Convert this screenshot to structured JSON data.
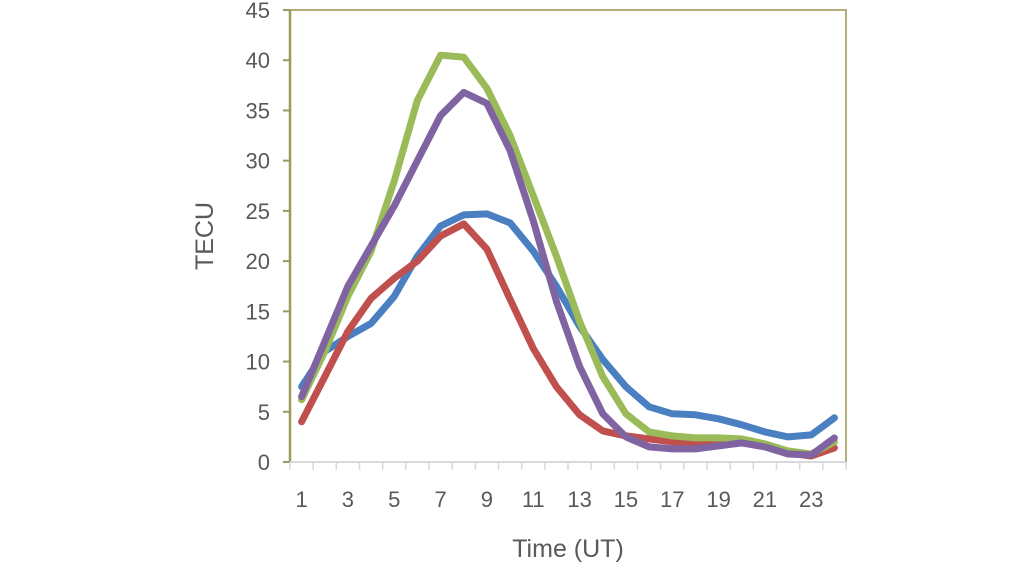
{
  "chart_data": {
    "type": "line",
    "title": "",
    "xlabel": "Time (UT)",
    "ylabel": "TECU",
    "ylim": [
      0,
      45
    ],
    "yticks": [
      0,
      5,
      10,
      15,
      20,
      25,
      30,
      35,
      40,
      45
    ],
    "x": [
      1,
      2,
      3,
      4,
      5,
      6,
      7,
      8,
      9,
      10,
      11,
      12,
      13,
      14,
      15,
      16,
      17,
      18,
      19,
      20,
      21,
      22,
      23,
      24
    ],
    "xtick_labels": [
      "1",
      "3",
      "5",
      "7",
      "9",
      "11",
      "13",
      "15",
      "17",
      "19",
      "21",
      "23"
    ],
    "grid": false,
    "series": [
      {
        "name": "blue",
        "color": "#4a7fc1",
        "values": [
          7.5,
          11,
          12.5,
          13.8,
          16.5,
          20.5,
          23.5,
          24.6,
          24.7,
          23.8,
          21,
          17.5,
          13.5,
          10.2,
          7.5,
          5.5,
          4.8,
          4.7,
          4.3,
          3.7,
          3,
          2.5,
          2.7,
          4.4
        ]
      },
      {
        "name": "red",
        "color": "#c0504d",
        "values": [
          4,
          8.5,
          13,
          16.3,
          18.3,
          20,
          22.5,
          23.7,
          21.2,
          16.2,
          11.3,
          7.5,
          4.7,
          3.1,
          2.6,
          2.3,
          2,
          1.8,
          1.8,
          1.9,
          1.6,
          0.9,
          0.6,
          1.4
        ]
      },
      {
        "name": "green",
        "color": "#9bbb59",
        "values": [
          6.2,
          11,
          16.5,
          21,
          28,
          36,
          40.5,
          40.3,
          37.2,
          32.5,
          26.5,
          20.5,
          14,
          8.5,
          4.8,
          3,
          2.6,
          2.4,
          2.4,
          2.3,
          1.8,
          1.1,
          0.8,
          2
        ]
      },
      {
        "name": "purple",
        "color": "#8064a2",
        "values": [
          6.5,
          12,
          17.5,
          21.5,
          25.5,
          30,
          34.5,
          36.8,
          35.7,
          31,
          24,
          16,
          9.5,
          4.8,
          2.5,
          1.5,
          1.3,
          1.3,
          1.6,
          1.9,
          1.5,
          0.8,
          0.7,
          2.4
        ]
      }
    ]
  }
}
